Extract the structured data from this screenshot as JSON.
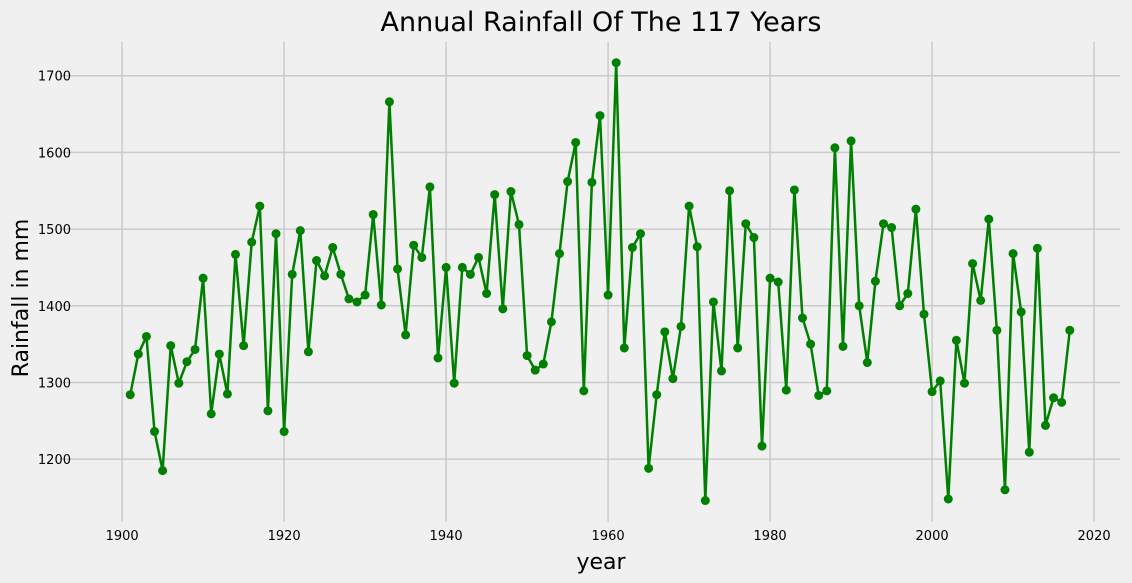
{
  "chart_data": {
    "type": "line",
    "title": "Annual Rainfall Of The 117 Years",
    "xlabel": "year",
    "ylabel": "Rainfall in mm",
    "xlim": [
      1894.8,
      2023.2
    ],
    "ylim": [
      1118,
      1744
    ],
    "xticks": [
      1900,
      1920,
      1940,
      1960,
      1980,
      2000,
      2020
    ],
    "yticks": [
      1200,
      1300,
      1400,
      1500,
      1600,
      1700
    ],
    "grid": true,
    "colors": {
      "line": "#008000",
      "marker": "#008000",
      "background": "#f0f0f0",
      "grid": "#cbcbcb"
    },
    "series": [
      {
        "x": [
          1901,
          1902,
          1903,
          1904,
          1905,
          1906,
          1907,
          1908,
          1909,
          1910,
          1911,
          1912,
          1913,
          1914,
          1915,
          1916,
          1917,
          1918,
          1919,
          1920,
          1921,
          1922,
          1923,
          1924,
          1925,
          1926,
          1927,
          1928,
          1929,
          1930,
          1931,
          1932,
          1933,
          1934,
          1935,
          1936,
          1937,
          1938,
          1939,
          1940,
          1941,
          1942,
          1943,
          1944,
          1945,
          1946,
          1947,
          1948,
          1949,
          1950,
          1951,
          1952,
          1953,
          1954,
          1955,
          1956,
          1957,
          1958,
          1959,
          1960,
          1961,
          1962,
          1963,
          1964,
          1965,
          1966,
          1967,
          1968,
          1969,
          1970,
          1971,
          1972,
          1973,
          1974,
          1975,
          1976,
          1977,
          1978,
          1979,
          1980,
          1981,
          1982,
          1983,
          1984,
          1985,
          1986,
          1987,
          1988,
          1989,
          1990,
          1991,
          1992,
          1993,
          1994,
          1995,
          1996,
          1997,
          1998,
          1999,
          2000,
          2001,
          2002,
          2003,
          2004,
          2005,
          2006,
          2007,
          2008,
          2009,
          2010,
          2011,
          2012,
          2013,
          2014,
          2015,
          2016,
          2017
        ],
        "y": [
          1284,
          1337,
          1360,
          1236,
          1185,
          1348,
          1299,
          1327,
          1343,
          1436,
          1259,
          1337,
          1285,
          1467,
          1348,
          1483,
          1530,
          1263,
          1494,
          1236,
          1441,
          1498,
          1340,
          1459,
          1439,
          1476,
          1441,
          1409,
          1405,
          1414,
          1519,
          1401,
          1666,
          1448,
          1362,
          1479,
          1463,
          1555,
          1332,
          1450,
          1299,
          1450,
          1441,
          1463,
          1416,
          1545,
          1396,
          1549,
          1506,
          1335,
          1316,
          1324,
          1379,
          1468,
          1562,
          1613,
          1289,
          1561,
          1648,
          1414,
          1717,
          1345,
          1476,
          1494,
          1188,
          1284,
          1366,
          1305,
          1373,
          1530,
          1477,
          1146,
          1405,
          1315,
          1550,
          1345,
          1507,
          1489,
          1217,
          1436,
          1431,
          1290,
          1551,
          1384,
          1350,
          1283,
          1289,
          1606,
          1347,
          1615,
          1400,
          1326,
          1432,
          1507,
          1502,
          1400,
          1416,
          1526,
          1389,
          1288,
          1302,
          1148,
          1355,
          1299,
          1455,
          1407,
          1513,
          1368,
          1160,
          1468,
          1392,
          1209,
          1475,
          1244,
          1280,
          1274,
          1368
        ]
      }
    ]
  }
}
